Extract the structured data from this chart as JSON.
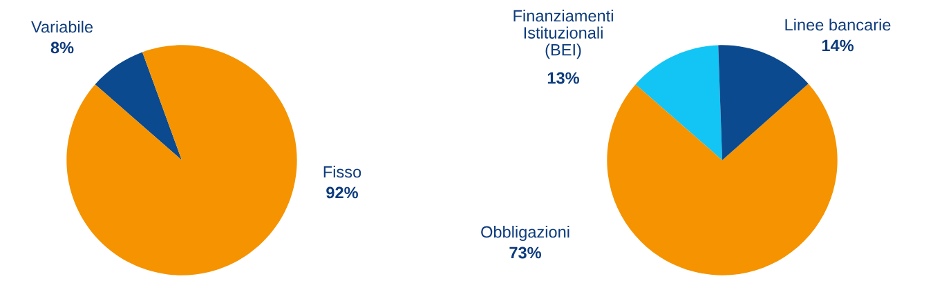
{
  "chart_data": [
    {
      "type": "pie",
      "categories": [
        "Variabile",
        "Fisso"
      ],
      "values": [
        8,
        92
      ],
      "value_labels": [
        "8%",
        "92%"
      ],
      "colors": [
        "#0b4a8f",
        "#f59300"
      ]
    },
    {
      "type": "pie",
      "categories": [
        "Finanziamenti\nIstituzionali\n(BEI)",
        "Obbligazioni",
        "Linee bancarie"
      ],
      "values": [
        13,
        73,
        14
      ],
      "value_labels": [
        "13%",
        "73%",
        "14%"
      ],
      "colors": [
        "#12c5f5",
        "#f59300",
        "#0b4a8f"
      ]
    }
  ]
}
